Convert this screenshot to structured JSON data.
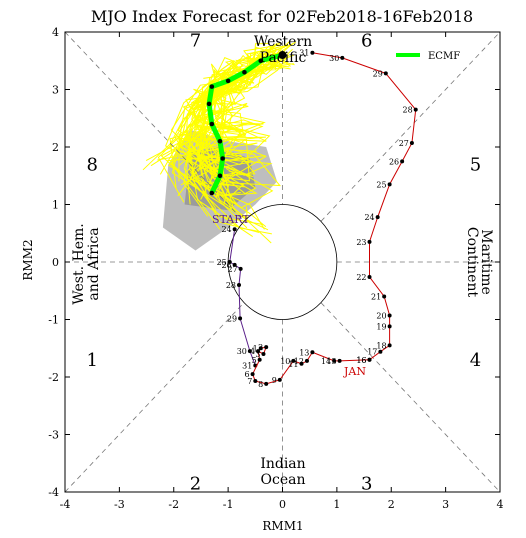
{
  "chart_data": {
    "type": "line",
    "title": "MJO Index Forecast for 02Feb2018-16Feb2018",
    "xlabel": "RMM1",
    "ylabel": "RMM2",
    "xlim": [
      -4,
      4
    ],
    "ylim": [
      -4,
      4
    ],
    "xticks": [
      "-4",
      "-3",
      "-2",
      "-1",
      "0",
      "1",
      "2",
      "3",
      "4"
    ],
    "yticks": [
      "-4",
      "-3",
      "-2",
      "-1",
      "0",
      "1",
      "2",
      "3",
      "4"
    ],
    "phase_labels": [
      "1",
      "2",
      "3",
      "4",
      "5",
      "6",
      "7",
      "8"
    ],
    "region_labels": {
      "bottom": [
        "Indian",
        "Ocean"
      ],
      "right": [
        "Maritime",
        "Continent"
      ],
      "top": [
        "Western",
        "Pacific"
      ],
      "left": [
        "West. Hem.",
        "and Africa"
      ]
    },
    "month_label": "JAN",
    "start_label": "START",
    "legend": {
      "label": "ECMF",
      "color": "#00ff00",
      "placement": "top-right"
    },
    "colors": {
      "jan": "#cc0000",
      "dec": "#5a1f8a",
      "ensemble": "#ffff00",
      "mean": "#00ff00",
      "spread_outer": "#bebebe",
      "spread_inner": "#9b9b9b"
    },
    "series": [
      {
        "name": "JAN",
        "color": "#cc0000",
        "points": [
          {
            "label": "16",
            "x": 1.6,
            "y": -1.7
          },
          {
            "label": "17",
            "x": 1.8,
            "y": -1.56
          },
          {
            "label": "18",
            "x": 1.97,
            "y": -1.45
          },
          {
            "label": "19",
            "x": 1.97,
            "y": -1.12
          },
          {
            "label": "20",
            "x": 1.97,
            "y": -0.93
          },
          {
            "label": "21",
            "x": 1.87,
            "y": -0.6
          },
          {
            "label": "22",
            "x": 1.6,
            "y": -0.26
          },
          {
            "label": "23",
            "x": 1.6,
            "y": 0.35
          },
          {
            "label": "24",
            "x": 1.75,
            "y": 0.78
          },
          {
            "label": "25",
            "x": 1.97,
            "y": 1.35
          },
          {
            "label": "26",
            "x": 2.2,
            "y": 1.75
          },
          {
            "label": "27",
            "x": 2.38,
            "y": 2.07
          },
          {
            "label": "28",
            "x": 2.45,
            "y": 2.65
          },
          {
            "label": "29",
            "x": 1.9,
            "y": 3.28
          },
          {
            "label": "30",
            "x": 1.1,
            "y": 3.55
          },
          {
            "label": "31",
            "x": 0.55,
            "y": 3.64
          }
        ]
      },
      {
        "name": "DEC",
        "color": "#5a1f8a",
        "points": [
          {
            "label": "24",
            "x": -0.88,
            "y": 0.57
          },
          {
            "label": "25",
            "x": -0.97,
            "y": 0.0
          },
          {
            "label": "26",
            "x": -0.88,
            "y": -0.05
          },
          {
            "label": "27",
            "x": -0.77,
            "y": -0.12
          },
          {
            "label": "28",
            "x": -0.8,
            "y": -0.4
          },
          {
            "label": "29",
            "x": -0.78,
            "y": -0.98
          },
          {
            "label": "30",
            "x": -0.6,
            "y": -1.55
          },
          {
            "label": "31",
            "x": -0.5,
            "y": -1.8
          }
        ]
      },
      {
        "name": "JAN",
        "color": "#cc0000",
        "points": [
          {
            "label": "1",
            "x": -0.4,
            "y": -1.5
          },
          {
            "label": "2",
            "x": -0.3,
            "y": -1.48
          },
          {
            "label": "3",
            "x": -0.35,
            "y": -1.6
          },
          {
            "label": "4",
            "x": -0.45,
            "y": -1.55
          },
          {
            "label": "5",
            "x": -0.42,
            "y": -1.7
          },
          {
            "label": "6",
            "x": -0.55,
            "y": -1.95
          },
          {
            "label": "7",
            "x": -0.5,
            "y": -2.07
          },
          {
            "label": "8",
            "x": -0.3,
            "y": -2.12
          },
          {
            "label": "9",
            "x": -0.05,
            "y": -2.05
          },
          {
            "label": "10",
            "x": 0.2,
            "y": -1.72
          },
          {
            "label": "11",
            "x": 0.35,
            "y": -1.77
          },
          {
            "label": "12",
            "x": 0.45,
            "y": -1.72
          },
          {
            "label": "13",
            "x": 0.55,
            "y": -1.57
          },
          {
            "label": "14",
            "x": 0.95,
            "y": -1.72
          },
          {
            "label": "15",
            "x": 1.05,
            "y": -1.72
          },
          {
            "label": "16",
            "x": 1.6,
            "y": -1.7
          }
        ]
      },
      {
        "name": "ECMF",
        "color": "#00ff00",
        "points": [
          {
            "x": 0.0,
            "y": 3.6
          },
          {
            "x": -0.4,
            "y": 3.5
          },
          {
            "x": -0.7,
            "y": 3.3
          },
          {
            "x": -1.0,
            "y": 3.15
          },
          {
            "x": -1.3,
            "y": 3.05
          },
          {
            "x": -1.35,
            "y": 2.75
          },
          {
            "x": -1.3,
            "y": 2.4
          },
          {
            "x": -1.15,
            "y": 2.1
          },
          {
            "x": -1.1,
            "y": 1.8
          },
          {
            "x": -1.15,
            "y": 1.5
          },
          {
            "x": -1.3,
            "y": 1.2
          }
        ]
      }
    ]
  }
}
